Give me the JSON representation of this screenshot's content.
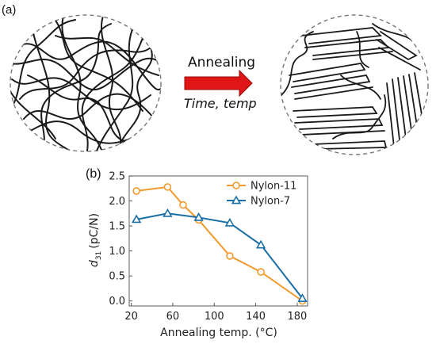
{
  "panel_a": {
    "label": "(a)",
    "arrow_text": "Annealing",
    "arrow_subtext": "Time, temp",
    "arrow_color": "#e01515"
  },
  "panel_b": {
    "label": "(b)"
  },
  "chart_data": {
    "type": "line",
    "title": "",
    "xlabel": "Annealing temp. (°C)",
    "ylabel_main": "d",
    "ylabel_sub": "31",
    "ylabel_rest": "(pC/N)",
    "xlim": [
      18,
      190
    ],
    "ylim": [
      -0.1,
      2.5
    ],
    "xticks": [
      20,
      60,
      100,
      140,
      180
    ],
    "yticks": [
      0.0,
      0.5,
      1.0,
      1.5,
      2.0,
      2.5
    ],
    "ytick_labels": [
      "0.0",
      "0.5",
      "1.0",
      "1.5",
      "2.0",
      "2.5"
    ],
    "legend_position": "top-right",
    "grid": false,
    "series": [
      {
        "name": "Nylon-11",
        "color": "#f39a2e",
        "marker": "circle",
        "x": [
          25,
          55,
          70,
          85,
          115,
          145,
          185
        ],
        "y": [
          2.2,
          2.28,
          1.92,
          1.62,
          0.9,
          0.58,
          0.0
        ]
      },
      {
        "name": "Nylon-7",
        "color": "#1a6fa6",
        "marker": "triangle",
        "x": [
          25,
          55,
          85,
          115,
          145,
          185
        ],
        "y": [
          1.63,
          1.75,
          1.67,
          1.56,
          1.12,
          0.05
        ]
      }
    ]
  }
}
